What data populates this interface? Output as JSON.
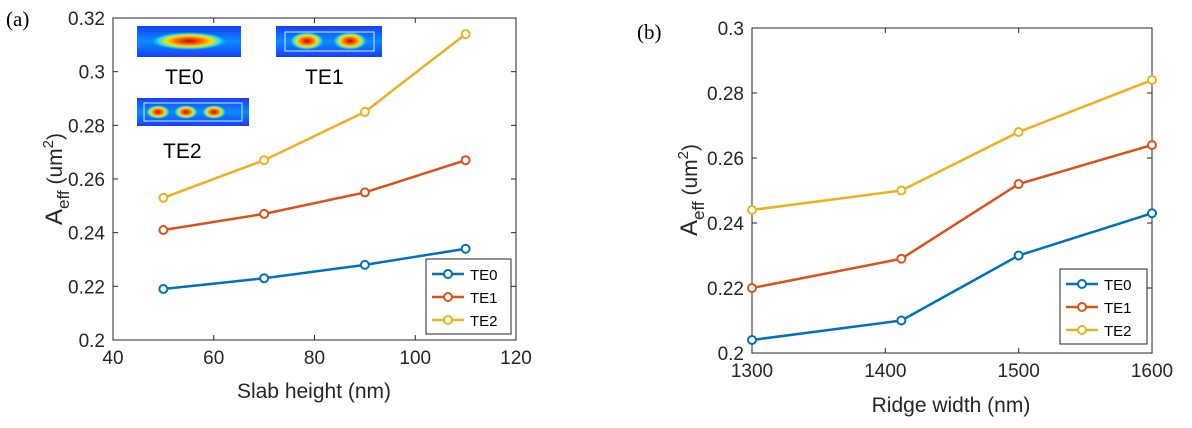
{
  "chart_data": [
    {
      "panel": "(a)",
      "type": "line",
      "xlabel": "Slab height (nm)",
      "ylabel_main": "A",
      "ylabel_sub": "eff",
      "ylabel_unit": " (um",
      "ylabel_sup": "2",
      "ylabel_close": ")",
      "xlim": [
        40,
        120
      ],
      "ylim": [
        0.2,
        0.32
      ],
      "xticks": [
        40,
        60,
        80,
        100,
        120
      ],
      "xtick_labels": [
        "40",
        "60",
        "80",
        "100",
        "120"
      ],
      "yticks": [
        0.2,
        0.22,
        0.24,
        0.26,
        0.28,
        0.3,
        0.32
      ],
      "ytick_labels": [
        "0.2",
        "0.22",
        "0.24",
        "0.26",
        "0.28",
        "0.3",
        "0.32"
      ],
      "x": [
        50,
        70,
        90,
        110
      ],
      "series": [
        {
          "name": "TE0",
          "color": "#0072BD",
          "values": [
            0.219,
            0.223,
            0.228,
            0.234
          ]
        },
        {
          "name": "TE1",
          "color": "#D95319",
          "values": [
            0.241,
            0.247,
            0.255,
            0.267
          ]
        },
        {
          "name": "TE2",
          "color": "#EDB120",
          "values": [
            0.253,
            0.267,
            0.285,
            0.314
          ]
        }
      ],
      "legend_position": "bottom-right",
      "inset_labels": [
        "TE0",
        "TE1",
        "TE2"
      ],
      "inset_icons": [
        "mode-profile-te0",
        "mode-profile-te1",
        "mode-profile-te2"
      ]
    },
    {
      "panel": "(b)",
      "type": "line",
      "xlabel": "Ridge width (nm)",
      "ylabel_main": "A",
      "ylabel_sub": "eff",
      "ylabel_unit": " (um",
      "ylabel_sup": "2",
      "ylabel_close": ")",
      "xlim": [
        1300,
        1600
      ],
      "ylim": [
        0.2,
        0.3
      ],
      "xticks": [
        1300,
        1400,
        1500,
        1600
      ],
      "xtick_labels": [
        "1300",
        "1400",
        "1500",
        "1600"
      ],
      "yticks": [
        0.2,
        0.22,
        0.24,
        0.26,
        0.28,
        0.3
      ],
      "ytick_labels": [
        "0.2",
        "0.22",
        "0.24",
        "0.26",
        "0.28",
        "0.3"
      ],
      "x": [
        1300,
        1412,
        1500,
        1600
      ],
      "series": [
        {
          "name": "TE0",
          "color": "#0072BD",
          "values": [
            0.204,
            0.21,
            0.23,
            0.243
          ]
        },
        {
          "name": "TE1",
          "color": "#D95319",
          "values": [
            0.22,
            0.229,
            0.252,
            0.264
          ]
        },
        {
          "name": "TE2",
          "color": "#EDB120",
          "values": [
            0.244,
            0.25,
            0.268,
            0.284
          ]
        }
      ],
      "legend_position": "bottom-right"
    }
  ]
}
